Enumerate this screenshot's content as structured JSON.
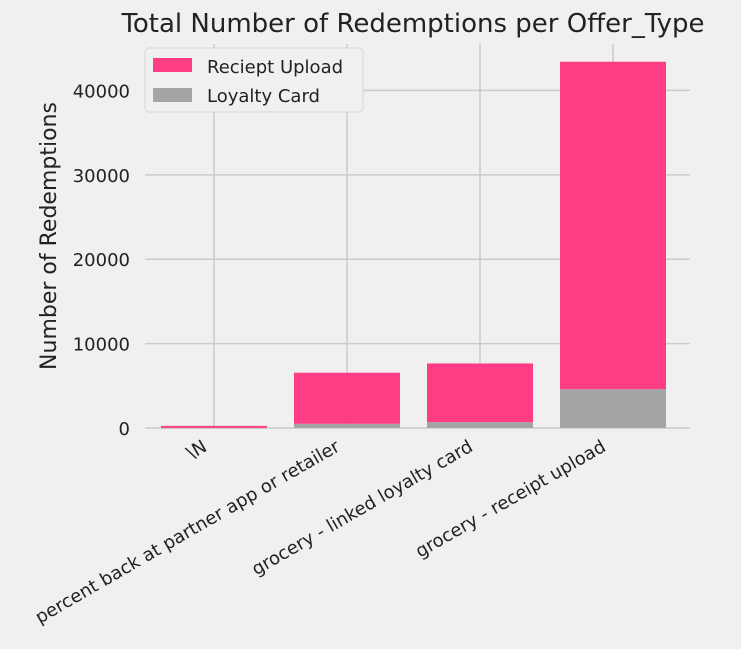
{
  "chart_data": {
    "type": "bar",
    "stacked": true,
    "title": "Total Number of Redemptions per Offer_Type",
    "xlabel": "",
    "ylabel": "Number of Redemptions",
    "categories": [
      "\\N",
      "percent back at partner app or retailer",
      "grocery - linked loyalty card",
      "grocery - receipt upload"
    ],
    "series": [
      {
        "name": "Loyalty Card",
        "color": "#a5a5a5",
        "values": [
          20,
          500,
          700,
          4600
        ]
      },
      {
        "name": "Reciept Upload",
        "color": "#ff3d84",
        "values": [
          230,
          6050,
          6950,
          38800
        ]
      }
    ],
    "ylim": [
      0,
      45500
    ],
    "yticks": [
      0,
      10000,
      20000,
      30000,
      40000
    ],
    "grid": true,
    "legend_position": "top-left",
    "legend_order": [
      "Reciept Upload",
      "Loyalty Card"
    ]
  }
}
